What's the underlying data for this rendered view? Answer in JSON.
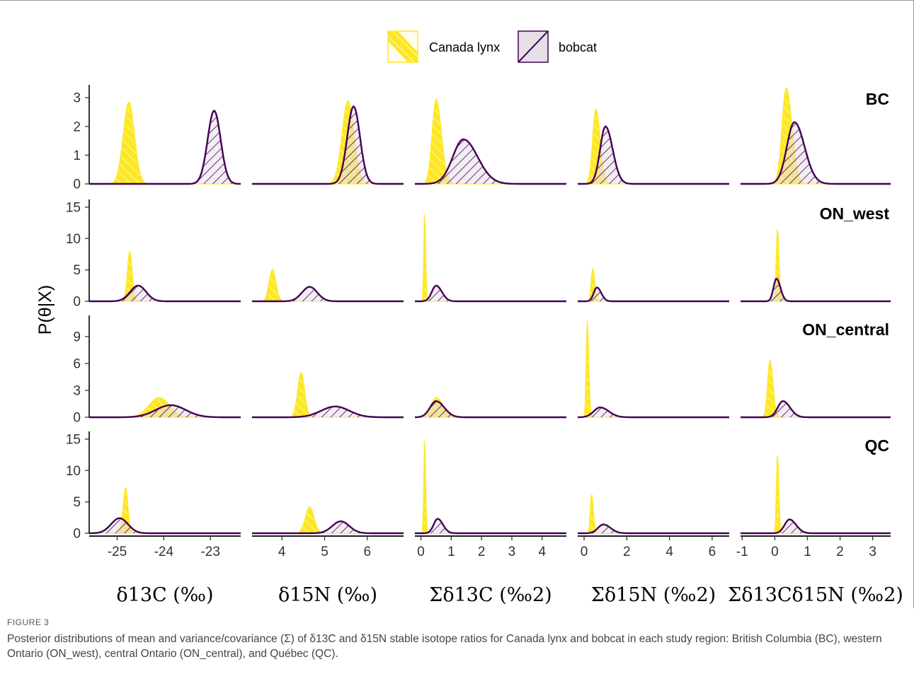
{
  "chart_data": {
    "type": "area",
    "legend": {
      "placement": "top",
      "items": [
        {
          "name": "Canada lynx",
          "color": "#FDE725",
          "pattern": "hatch-back"
        },
        {
          "name": "bobcat",
          "color": "#440154",
          "fill": "#e6dfe8",
          "pattern": "hatch-fwd"
        }
      ]
    },
    "ylabel": "P(θ|X)",
    "regions": [
      "BC",
      "ON_west",
      "ON_central",
      "QC"
    ],
    "panels_x": [
      {
        "xlabel": "δ13C (‰)",
        "ticks": [
          -25,
          -24,
          -23
        ],
        "xlim": [
          -25.6,
          -22.35
        ]
      },
      {
        "xlabel": "δ15N (‰)",
        "ticks": [
          4,
          5,
          6
        ],
        "xlim": [
          3.3,
          6.85
        ]
      },
      {
        "xlabel": "Σδ13C (‰2)",
        "ticks": [
          0,
          1,
          2,
          3,
          4
        ],
        "xlim": [
          -0.2,
          4.8
        ]
      },
      {
        "xlabel": "Σδ15N (‰2)",
        "ticks": [
          0,
          2,
          4,
          6
        ],
        "xlim": [
          -0.3,
          6.8
        ]
      },
      {
        "xlabel": "Σδ13Cδ15N (‰2)",
        "ticks": [
          -1,
          0,
          1,
          2,
          3
        ],
        "xlim": [
          -1.05,
          3.55
        ]
      }
    ],
    "rows": [
      {
        "region": "BC",
        "ylim": [
          0,
          3.4
        ],
        "yticks": [
          0,
          1,
          2,
          3
        ],
        "panels": [
          {
            "lynx": {
              "mean": -24.75,
              "sd": 0.12,
              "peak": 2.85
            },
            "bobcat": {
              "mean": -22.92,
              "sd": 0.14,
              "peak": 2.55
            }
          },
          {
            "lynx": {
              "mean": 5.55,
              "sd": 0.14,
              "peak": 2.9
            },
            "bobcat": {
              "mean": 5.68,
              "sd": 0.15,
              "peak": 2.7
            }
          },
          {
            "lynx": {
              "mean": 0.5,
              "sd": 0.13,
              "peak": 2.95
            },
            "bobcat": {
              "mean": 1.4,
              "sd": 0.35,
              "peak": 1.55
            }
          },
          {
            "lynx": {
              "mean": 0.55,
              "sd": 0.15,
              "peak": 2.6
            },
            "bobcat": {
              "mean": 1.0,
              "sd": 0.25,
              "peak": 2.0
            }
          },
          {
            "lynx": {
              "mean": 0.35,
              "sd": 0.13,
              "peak": 3.35
            },
            "bobcat": {
              "mean": 0.6,
              "sd": 0.23,
              "peak": 2.15
            }
          }
        ]
      },
      {
        "region": "ON_west",
        "ylim": [
          0,
          16
        ],
        "yticks": [
          0,
          5,
          10,
          15
        ],
        "panels": [
          {
            "lynx": {
              "mean": -24.73,
              "sd": 0.05,
              "peak": 8.0
            },
            "bobcat": {
              "mean": -24.55,
              "sd": 0.17,
              "peak": 2.5
            }
          },
          {
            "lynx": {
              "mean": 3.78,
              "sd": 0.08,
              "peak": 5.1
            },
            "bobcat": {
              "mean": 4.65,
              "sd": 0.18,
              "peak": 2.3
            }
          },
          {
            "lynx": {
              "mean": 0.12,
              "sd": 0.025,
              "peak": 14.4
            },
            "bobcat": {
              "mean": 0.5,
              "sd": 0.14,
              "peak": 2.5
            }
          },
          {
            "lynx": {
              "mean": 0.4,
              "sd": 0.07,
              "peak": 5.3
            },
            "bobcat": {
              "mean": 0.6,
              "sd": 0.15,
              "peak": 2.2
            }
          },
          {
            "lynx": {
              "mean": 0.08,
              "sd": 0.035,
              "peak": 11.8
            },
            "bobcat": {
              "mean": 0.05,
              "sd": 0.09,
              "peak": 3.6
            }
          }
        ]
      },
      {
        "region": "ON_central",
        "ylim": [
          0,
          11.2
        ],
        "yticks": [
          0,
          3,
          6,
          9
        ],
        "panels": [
          {
            "lynx": {
              "mean": -24.1,
              "sd": 0.22,
              "peak": 2.2
            },
            "bobcat": {
              "mean": -23.85,
              "sd": 0.32,
              "peak": 1.35
            }
          },
          {
            "lynx": {
              "mean": 4.45,
              "sd": 0.08,
              "peak": 5.0
            },
            "bobcat": {
              "mean": 5.25,
              "sd": 0.33,
              "peak": 1.2
            }
          },
          {
            "lynx": {
              "mean": 0.5,
              "sd": 0.17,
              "peak": 2.2
            },
            "bobcat": {
              "mean": 0.5,
              "sd": 0.2,
              "peak": 1.8
            }
          },
          {
            "lynx": {
              "mean": 0.15,
              "sd": 0.05,
              "peak": 10.8
            },
            "bobcat": {
              "mean": 0.75,
              "sd": 0.3,
              "peak": 1.1
            }
          },
          {
            "lynx": {
              "mean": -0.15,
              "sd": 0.07,
              "peak": 6.4
            },
            "bobcat": {
              "mean": 0.25,
              "sd": 0.16,
              "peak": 1.8
            }
          }
        ]
      },
      {
        "region": "QC",
        "ylim": [
          0,
          16
        ],
        "yticks": [
          0,
          5,
          10,
          15
        ],
        "panels": [
          {
            "lynx": {
              "mean": -24.82,
              "sd": 0.05,
              "peak": 7.3
            },
            "bobcat": {
              "mean": -24.95,
              "sd": 0.18,
              "peak": 2.4
            }
          },
          {
            "lynx": {
              "mean": 4.65,
              "sd": 0.1,
              "peak": 4.2
            },
            "bobcat": {
              "mean": 5.38,
              "sd": 0.2,
              "peak": 1.9
            }
          },
          {
            "lynx": {
              "mean": 0.12,
              "sd": 0.025,
              "peak": 15.4
            },
            "bobcat": {
              "mean": 0.55,
              "sd": 0.13,
              "peak": 2.3
            }
          },
          {
            "lynx": {
              "mean": 0.35,
              "sd": 0.06,
              "peak": 6.3
            },
            "bobcat": {
              "mean": 0.9,
              "sd": 0.25,
              "peak": 1.4
            }
          },
          {
            "lynx": {
              "mean": 0.08,
              "sd": 0.03,
              "peak": 12.8
            },
            "bobcat": {
              "mean": 0.45,
              "sd": 0.15,
              "peak": 2.2
            }
          }
        ]
      }
    ]
  },
  "figure": {
    "label": "FIGURE 3",
    "caption": "Posterior distributions of mean and variance/covariance (Σ) of δ13C and δ15N stable isotope ratios for Canada lynx and bobcat in each study region: British Columbia (BC), western Ontario (ON_west), central Ontario (ON_central), and Québec (QC)."
  }
}
